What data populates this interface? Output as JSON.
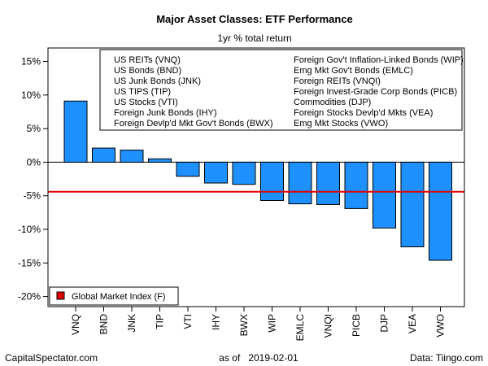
{
  "chart_data": {
    "type": "bar",
    "title": "Major Asset Classes: ETF Performance",
    "subtitle": "1yr % total return",
    "categories": [
      "VNQ",
      "BND",
      "JNK",
      "TIP",
      "VTI",
      "IHY",
      "BWX",
      "WIP",
      "EMLC",
      "VNQI",
      "PICB",
      "DJP",
      "VEA",
      "VWO"
    ],
    "values": [
      9.1,
      2.1,
      1.8,
      0.5,
      -2.1,
      -3.1,
      -3.3,
      -5.7,
      -6.2,
      -6.3,
      -6.9,
      -9.8,
      -12.6,
      -14.6
    ],
    "ylim": [
      -21.5,
      17
    ],
    "yticks": [
      15,
      10,
      5,
      0,
      -5,
      -10,
      -15,
      -20
    ],
    "ytick_labels": [
      "15%",
      "10%",
      "5%",
      "0%",
      "-5%",
      "-10%",
      "-15%",
      "-20%"
    ],
    "reference_line": {
      "value": -4.4,
      "color": "#e00000"
    },
    "bar_color": "#1e90ff",
    "legend_left": [
      "US REITs (VNQ)",
      "US Bonds (BND)",
      "US Junk Bonds (JNK)",
      "US TIPS (TIP)",
      "US Stocks (VTI)",
      "Foreign Junk Bonds (IHY)",
      "Foreign Devlp'd Mkt Gov't Bonds (BWX)"
    ],
    "legend_right": [
      "Foreign Gov't Inflation-Linked Bonds (WIP)",
      "Emg Mkt Gov't Bonds (EMLC)",
      "Foreign REITs (VNQI)",
      "Foreign Invest-Grade Corp Bonds (PICB)",
      "Commodities (DJP)",
      "Foreign Stocks Devlp'd Mkts (VEA)",
      "Emg Mkt Stocks (VWO)"
    ],
    "legend_placement": "top-right",
    "index_legend": {
      "label": "Global Market Index (F)",
      "color": "#e00000",
      "placement": "bottom-left"
    }
  },
  "footer": {
    "left": "CapitalSpectator.com",
    "center": "as of   2019-02-01",
    "right": "Data: Tiingo.com"
  }
}
